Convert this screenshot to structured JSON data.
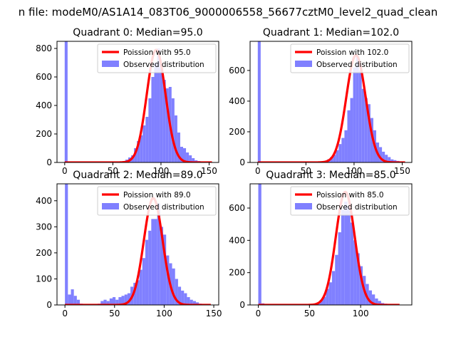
{
  "figure": {
    "suptitle": "n file: modeM0/AS1A14_083T06_9000006558_56677cztM0_level2_quad_clean"
  },
  "colors": {
    "hist": "#8080ff",
    "fit": "#ff0000",
    "axis": "#000000",
    "background": "#ffffff",
    "legend_border": "#cccccc"
  },
  "chart_data": [
    {
      "type": "bar",
      "title": "Quadrant 0: Median=95.0",
      "legend": [
        "Poission with 95.0",
        "Observed distribution"
      ],
      "legend_position": "top-right",
      "xlim": [
        -8,
        160
      ],
      "ylim": [
        0,
        850
      ],
      "xticks": [
        0,
        50,
        100,
        150
      ],
      "yticks": [
        0,
        200,
        400,
        600,
        800
      ],
      "bin_width": 3,
      "bins": [
        [
          0,
          850
        ],
        [
          3,
          5
        ],
        [
          6,
          4
        ],
        [
          9,
          4
        ],
        [
          12,
          3
        ],
        [
          15,
          3
        ],
        [
          18,
          3
        ],
        [
          21,
          3
        ],
        [
          24,
          3
        ],
        [
          27,
          3
        ],
        [
          30,
          3
        ],
        [
          33,
          3
        ],
        [
          36,
          3
        ],
        [
          39,
          3
        ],
        [
          42,
          3
        ],
        [
          45,
          3
        ],
        [
          48,
          3
        ],
        [
          51,
          3
        ],
        [
          54,
          3
        ],
        [
          57,
          3
        ],
        [
          60,
          10
        ],
        [
          63,
          20
        ],
        [
          66,
          35
        ],
        [
          69,
          50
        ],
        [
          72,
          100
        ],
        [
          75,
          150
        ],
        [
          78,
          190
        ],
        [
          81,
          260
        ],
        [
          84,
          320
        ],
        [
          87,
          450
        ],
        [
          90,
          600
        ],
        [
          93,
          700
        ],
        [
          96,
          800
        ],
        [
          99,
          660
        ],
        [
          102,
          580
        ],
        [
          105,
          520
        ],
        [
          108,
          530
        ],
        [
          111,
          450
        ],
        [
          114,
          330
        ],
        [
          117,
          210
        ],
        [
          120,
          110
        ],
        [
          123,
          100
        ],
        [
          126,
          70
        ],
        [
          129,
          50
        ],
        [
          132,
          30
        ],
        [
          135,
          15
        ],
        [
          138,
          10
        ],
        [
          141,
          5
        ],
        [
          144,
          3
        ],
        [
          147,
          2
        ],
        [
          150,
          1
        ]
      ],
      "fit": {
        "label": "Poission with 95.0",
        "mean": 95.0,
        "peak": 790,
        "x_start": 0,
        "x_end": 153
      }
    },
    {
      "type": "bar",
      "title": "Quadrant 1: Median=102.0",
      "legend": [
        "Poission with 102.0",
        "Observed distribution"
      ],
      "legend_position": "top-right",
      "xlim": [
        -8,
        160
      ],
      "ylim": [
        0,
        790
      ],
      "xticks": [
        0,
        50,
        100,
        150
      ],
      "yticks": [
        0,
        200,
        400,
        600
      ],
      "bin_width": 3,
      "bins": [
        [
          0,
          790
        ],
        [
          3,
          5
        ],
        [
          6,
          4
        ],
        [
          9,
          4
        ],
        [
          12,
          3
        ],
        [
          15,
          3
        ],
        [
          18,
          3
        ],
        [
          21,
          3
        ],
        [
          24,
          3
        ],
        [
          27,
          3
        ],
        [
          30,
          3
        ],
        [
          33,
          3
        ],
        [
          36,
          3
        ],
        [
          39,
          3
        ],
        [
          42,
          3
        ],
        [
          45,
          3
        ],
        [
          48,
          3
        ],
        [
          51,
          3
        ],
        [
          54,
          3
        ],
        [
          57,
          3
        ],
        [
          60,
          3
        ],
        [
          63,
          4
        ],
        [
          66,
          5
        ],
        [
          69,
          10
        ],
        [
          72,
          20
        ],
        [
          75,
          35
        ],
        [
          78,
          50
        ],
        [
          81,
          80
        ],
        [
          84,
          120
        ],
        [
          87,
          160
        ],
        [
          90,
          210
        ],
        [
          93,
          340
        ],
        [
          96,
          420
        ],
        [
          99,
          620
        ],
        [
          102,
          690
        ],
        [
          105,
          600
        ],
        [
          108,
          480
        ],
        [
          111,
          420
        ],
        [
          114,
          380
        ],
        [
          117,
          290
        ],
        [
          120,
          210
        ],
        [
          123,
          130
        ],
        [
          126,
          100
        ],
        [
          129,
          70
        ],
        [
          132,
          50
        ],
        [
          135,
          35
        ],
        [
          138,
          20
        ],
        [
          141,
          15
        ],
        [
          144,
          10
        ],
        [
          147,
          5
        ],
        [
          150,
          3
        ]
      ],
      "fit": {
        "label": "Poission with 102.0",
        "mean": 102.0,
        "peak": 700,
        "x_start": 0,
        "x_end": 153
      }
    },
    {
      "type": "bar",
      "title": "Quadrant 2: Median=89.0",
      "legend": [
        "Poission with 89.0",
        "Observed distribution"
      ],
      "legend_position": "top-right",
      "xlim": [
        -8,
        155
      ],
      "ylim": [
        0,
        465
      ],
      "xticks": [
        0,
        50,
        100,
        150
      ],
      "yticks": [
        0,
        100,
        200,
        300,
        400
      ],
      "bin_width": 3,
      "bins": [
        [
          0,
          465
        ],
        [
          3,
          40
        ],
        [
          6,
          60
        ],
        [
          9,
          35
        ],
        [
          12,
          20
        ],
        [
          15,
          5
        ],
        [
          18,
          3
        ],
        [
          21,
          3
        ],
        [
          24,
          3
        ],
        [
          27,
          3
        ],
        [
          30,
          3
        ],
        [
          33,
          5
        ],
        [
          36,
          15
        ],
        [
          39,
          20
        ],
        [
          42,
          15
        ],
        [
          45,
          25
        ],
        [
          48,
          30
        ],
        [
          51,
          20
        ],
        [
          54,
          30
        ],
        [
          57,
          35
        ],
        [
          60,
          40
        ],
        [
          63,
          45
        ],
        [
          66,
          70
        ],
        [
          69,
          85
        ],
        [
          72,
          95
        ],
        [
          75,
          135
        ],
        [
          78,
          180
        ],
        [
          81,
          250
        ],
        [
          84,
          285
        ],
        [
          87,
          330
        ],
        [
          90,
          330
        ],
        [
          93,
          390
        ],
        [
          96,
          300
        ],
        [
          99,
          270
        ],
        [
          102,
          190
        ],
        [
          105,
          160
        ],
        [
          108,
          140
        ],
        [
          111,
          100
        ],
        [
          114,
          70
        ],
        [
          117,
          55
        ],
        [
          120,
          45
        ],
        [
          123,
          30
        ],
        [
          126,
          20
        ],
        [
          129,
          15
        ],
        [
          132,
          10
        ],
        [
          135,
          5
        ],
        [
          138,
          3
        ],
        [
          141,
          2
        ],
        [
          144,
          1
        ]
      ],
      "fit": {
        "label": "Poission with 89.0",
        "mean": 89.0,
        "peak": 410,
        "x_start": 0,
        "x_end": 147
      }
    },
    {
      "type": "bar",
      "title": "Quadrant 3: Median=85.0",
      "legend": [
        "Poission with 85.0",
        "Observed distribution"
      ],
      "legend_position": "top-right",
      "xlim": [
        -8,
        150
      ],
      "ylim": [
        0,
        750
      ],
      "xticks": [
        0,
        50,
        100
      ],
      "yticks": [
        0,
        200,
        400,
        600
      ],
      "bin_width": 3,
      "bins": [
        [
          0,
          750
        ],
        [
          3,
          10
        ],
        [
          6,
          3
        ],
        [
          9,
          3
        ],
        [
          12,
          3
        ],
        [
          15,
          3
        ],
        [
          18,
          3
        ],
        [
          21,
          3
        ],
        [
          24,
          3
        ],
        [
          27,
          3
        ],
        [
          30,
          3
        ],
        [
          33,
          3
        ],
        [
          36,
          3
        ],
        [
          39,
          3
        ],
        [
          42,
          3
        ],
        [
          45,
          3
        ],
        [
          48,
          3
        ],
        [
          51,
          3
        ],
        [
          54,
          5
        ],
        [
          57,
          15
        ],
        [
          60,
          30
        ],
        [
          63,
          50
        ],
        [
          66,
          100
        ],
        [
          69,
          140
        ],
        [
          72,
          210
        ],
        [
          75,
          310
        ],
        [
          78,
          450
        ],
        [
          81,
          590
        ],
        [
          84,
          640
        ],
        [
          87,
          610
        ],
        [
          90,
          510
        ],
        [
          93,
          400
        ],
        [
          96,
          320
        ],
        [
          99,
          240
        ],
        [
          102,
          180
        ],
        [
          105,
          130
        ],
        [
          108,
          90
        ],
        [
          111,
          65
        ],
        [
          114,
          40
        ],
        [
          117,
          25
        ],
        [
          120,
          12
        ],
        [
          123,
          8
        ],
        [
          126,
          4
        ],
        [
          129,
          2
        ],
        [
          132,
          1
        ]
      ],
      "fit": {
        "label": "Poission with 85.0",
        "mean": 85.0,
        "peak": 700,
        "x_start": 0,
        "x_end": 138
      }
    }
  ]
}
